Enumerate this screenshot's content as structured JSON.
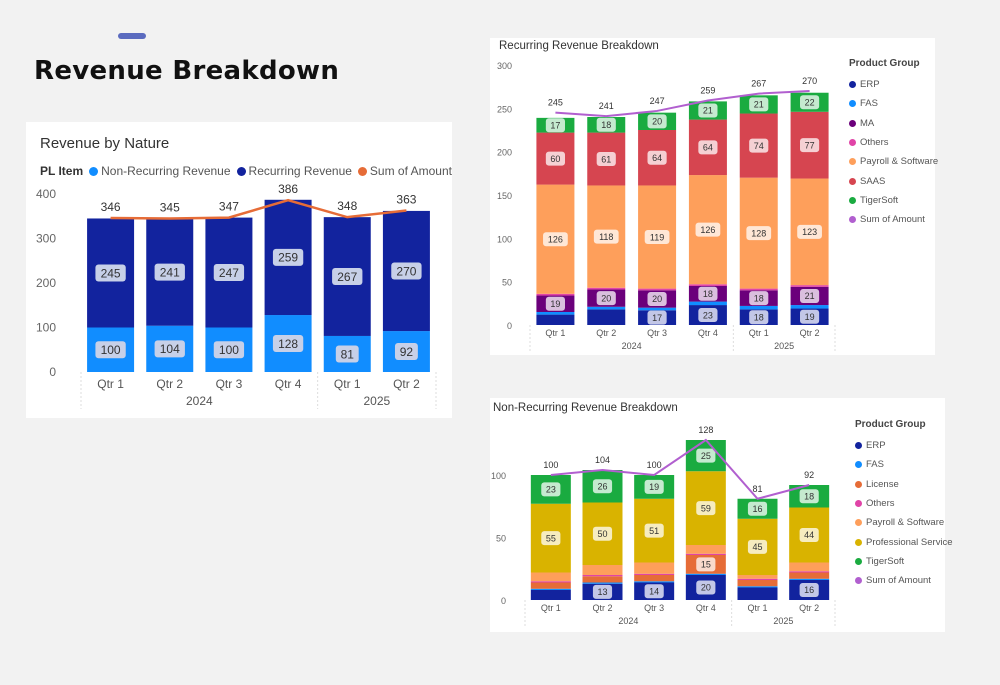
{
  "page": {
    "title": "Revenue Breakdown"
  },
  "chart_data": [
    {
      "id": "nature",
      "type": "bar",
      "stacked": true,
      "title": "Revenue by Nature",
      "legend_title": "PL Item",
      "legend_position": "top-left",
      "categories": [
        "Qtr 1",
        "Qtr 2",
        "Qtr 3",
        "Qtr 4",
        "Qtr 1",
        "Qtr 2"
      ],
      "groups": [
        {
          "label": "2024",
          "count": 4
        },
        {
          "label": "2025",
          "count": 2
        }
      ],
      "y_ticks": [
        0,
        100,
        200,
        300,
        400
      ],
      "ylim": [
        0,
        400
      ],
      "series": [
        {
          "name": "Non-Recurring Revenue",
          "color": "#118dff",
          "values": [
            100,
            104,
            100,
            128,
            81,
            92
          ]
        },
        {
          "name": "Recurring Revenue",
          "color": "#12239e",
          "values": [
            245,
            241,
            247,
            259,
            267,
            270
          ]
        }
      ],
      "bar_labels": [
        [
          "100",
          "104",
          "100",
          "128",
          "81",
          "92"
        ],
        [
          "245",
          "241",
          "247",
          "259",
          "267",
          "270"
        ]
      ],
      "line": {
        "name": "Sum of Amount",
        "color": "#e66c37",
        "values": [
          346,
          345,
          347,
          386,
          348,
          363
        ]
      },
      "total_labels": [
        "346",
        "345",
        "347",
        "386",
        "348",
        "363"
      ]
    },
    {
      "id": "recurring",
      "type": "bar",
      "stacked": true,
      "title": "Recurring Revenue Breakdown",
      "legend_title": "Product Group",
      "legend_position": "right",
      "categories": [
        "Qtr 1",
        "Qtr 2",
        "Qtr 3",
        "Qtr 4",
        "Qtr 1",
        "Qtr 2"
      ],
      "groups": [
        {
          "label": "2024",
          "count": 4
        },
        {
          "label": "2025",
          "count": 2
        }
      ],
      "y_ticks": [
        0,
        50,
        100,
        150,
        200,
        250,
        300
      ],
      "ylim": [
        0,
        300
      ],
      "series": [
        {
          "name": "ERP",
          "color": "#12239e",
          "values": [
            12,
            18,
            17,
            23,
            18,
            19
          ]
        },
        {
          "name": "FAS",
          "color": "#118dff",
          "values": [
            3,
            3,
            3,
            4,
            4,
            4
          ]
        },
        {
          "name": "MA",
          "color": "#6b007b",
          "values": [
            19,
            20,
            20,
            18,
            18,
            21
          ]
        },
        {
          "name": "Others",
          "color": "#e044a7",
          "values": [
            2,
            2,
            2,
            2,
            2,
            2
          ]
        },
        {
          "name": "Payroll & Software",
          "color": "#fe9f5b",
          "values": [
            126,
            118,
            119,
            126,
            128,
            123
          ]
        },
        {
          "name": "SAAS",
          "color": "#d64550",
          "values": [
            60,
            61,
            64,
            64,
            74,
            77
          ]
        },
        {
          "name": "TigerSoft",
          "color": "#1aab40",
          "values": [
            17,
            18,
            20,
            21,
            21,
            22
          ]
        }
      ],
      "bar_labels": [
        [
          "",
          "",
          "17",
          "23",
          "18",
          "19"
        ],
        [
          "",
          "",
          "",
          "",
          "",
          ""
        ],
        [
          "19",
          "20",
          "20",
          "18",
          "18",
          "21"
        ],
        [
          "",
          "",
          "",
          "",
          "",
          ""
        ],
        [
          "126",
          "118",
          "119",
          "126",
          "128",
          "123"
        ],
        [
          "60",
          "61",
          "64",
          "64",
          "74",
          "77"
        ],
        [
          "17",
          "18",
          "20",
          "21",
          "21",
          "22"
        ]
      ],
      "line": {
        "name": "Sum of Amount",
        "color": "#b15fcf",
        "values": [
          245,
          241,
          247,
          259,
          267,
          270
        ]
      },
      "total_labels": [
        "245",
        "241",
        "247",
        "259",
        "267",
        "270"
      ]
    },
    {
      "id": "nonrecurring",
      "type": "bar",
      "stacked": true,
      "title": "Non-Recurring Revenue Breakdown",
      "legend_title": "Product Group",
      "legend_position": "right",
      "categories": [
        "Qtr 1",
        "Qtr 2",
        "Qtr 3",
        "Qtr 4",
        "Qtr 1",
        "Qtr 2"
      ],
      "groups": [
        {
          "label": "2024",
          "count": 4
        },
        {
          "label": "2025",
          "count": 2
        }
      ],
      "y_ticks": [
        0,
        50,
        100
      ],
      "ylim": [
        0,
        128
      ],
      "series": [
        {
          "name": "ERP",
          "color": "#12239e",
          "values": [
            8,
            13,
            14,
            20,
            10,
            16
          ]
        },
        {
          "name": "FAS",
          "color": "#118dff",
          "values": [
            1,
            1,
            1,
            1,
            1,
            1
          ]
        },
        {
          "name": "License",
          "color": "#e66c37",
          "values": [
            5,
            5,
            5,
            15,
            5,
            5
          ]
        },
        {
          "name": "Others",
          "color": "#e044a7",
          "values": [
            1,
            1,
            1,
            1,
            1,
            1
          ]
        },
        {
          "name": "Payroll & Software",
          "color": "#fe9f5b",
          "values": [
            7,
            8,
            9,
            7,
            3,
            7
          ]
        },
        {
          "name": "Professional Service",
          "color": "#d9b300",
          "values": [
            55,
            50,
            51,
            59,
            45,
            44
          ]
        },
        {
          "name": "TigerSoft",
          "color": "#1aab40",
          "values": [
            23,
            26,
            19,
            25,
            16,
            18
          ]
        }
      ],
      "bar_labels": [
        [
          "",
          "13",
          "14",
          "20",
          "",
          "16"
        ],
        [
          "",
          "",
          "",
          "",
          "",
          ""
        ],
        [
          "",
          "",
          "",
          "15",
          "",
          ""
        ],
        [
          "",
          "",
          "",
          "",
          "",
          ""
        ],
        [
          "",
          "",
          "",
          "",
          "",
          ""
        ],
        [
          "55",
          "50",
          "51",
          "59",
          "45",
          "44"
        ],
        [
          "23",
          "26",
          "19",
          "25",
          "16",
          "18"
        ]
      ],
      "line": {
        "name": "Sum of Amount",
        "color": "#b15fcf",
        "values": [
          100,
          104,
          100,
          128,
          81,
          92
        ]
      },
      "total_labels": [
        "100",
        "104",
        "100",
        "128",
        "81",
        "92"
      ]
    }
  ]
}
